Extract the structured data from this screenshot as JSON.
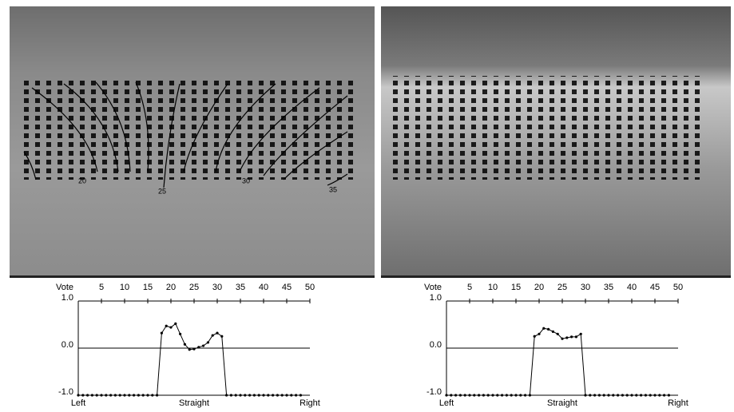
{
  "chart_data": [
    {
      "type": "line",
      "y_label": "Vote",
      "x_end_labels": [
        "Left",
        "Straight",
        "Right"
      ],
      "x": [
        0,
        1,
        2,
        3,
        4,
        5,
        6,
        7,
        8,
        9,
        10,
        11,
        12,
        13,
        14,
        15,
        16,
        17,
        18,
        19,
        20,
        21,
        22,
        23,
        24,
        25,
        26,
        27,
        28,
        29,
        30,
        31,
        32,
        33,
        34,
        35,
        36,
        37,
        38,
        39,
        40,
        41,
        42,
        43,
        44,
        45,
        46,
        47,
        48
      ],
      "values": [
        -1,
        -1,
        -1,
        -1,
        -1,
        -1,
        -1,
        -1,
        -1,
        -1,
        -1,
        -1,
        -1,
        -1,
        -1,
        -1,
        -1,
        -1,
        0.32,
        0.47,
        0.44,
        0.52,
        0.3,
        0.08,
        -0.03,
        -0.02,
        0.02,
        0.05,
        0.12,
        0.27,
        0.32,
        0.25,
        -1,
        -1,
        -1,
        -1,
        -1,
        -1,
        -1,
        -1,
        -1,
        -1,
        -1,
        -1,
        -1,
        -1,
        -1,
        -1,
        -1
      ],
      "color": "#000000",
      "xlim": [
        0,
        50
      ],
      "xticks": [
        5,
        10,
        15,
        20,
        25,
        30,
        35,
        40,
        45,
        50
      ],
      "ylim": [
        -1,
        1
      ],
      "yticks": [
        {
          "value": 1,
          "label": "1.0"
        },
        {
          "value": 0,
          "label": "0.0"
        },
        {
          "value": -1,
          "label": "-1.0"
        }
      ]
    },
    {
      "type": "line",
      "y_label": "Vote",
      "x_end_labels": [
        "Left",
        "Straight",
        "Right"
      ],
      "x": [
        0,
        1,
        2,
        3,
        4,
        5,
        6,
        7,
        8,
        9,
        10,
        11,
        12,
        13,
        14,
        15,
        16,
        17,
        18,
        19,
        20,
        21,
        22,
        23,
        24,
        25,
        26,
        27,
        28,
        29,
        30,
        31,
        32,
        33,
        34,
        35,
        36,
        37,
        38,
        39,
        40,
        41,
        42,
        43,
        44,
        45,
        46,
        47,
        48
      ],
      "values": [
        -1,
        -1,
        -1,
        -1,
        -1,
        -1,
        -1,
        -1,
        -1,
        -1,
        -1,
        -1,
        -1,
        -1,
        -1,
        -1,
        -1,
        -1,
        -1,
        0.25,
        0.3,
        0.42,
        0.4,
        0.35,
        0.3,
        0.2,
        0.22,
        0.24,
        0.24,
        0.3,
        -1,
        -1,
        -1,
        -1,
        -1,
        -1,
        -1,
        -1,
        -1,
        -1,
        -1,
        -1,
        -1,
        -1,
        -1,
        -1,
        -1,
        -1,
        -1
      ],
      "color": "#000000",
      "xlim": [
        0,
        50
      ],
      "xticks": [
        5,
        10,
        15,
        20,
        25,
        30,
        35,
        40,
        45,
        50
      ],
      "ylim": [
        -1,
        1
      ],
      "yticks": [
        {
          "value": 1,
          "label": "1.0"
        },
        {
          "value": 0,
          "label": "0.0"
        },
        {
          "value": -1,
          "label": "-1.0"
        }
      ]
    }
  ],
  "image_labels": [
    "20",
    "25",
    "30",
    "35"
  ]
}
